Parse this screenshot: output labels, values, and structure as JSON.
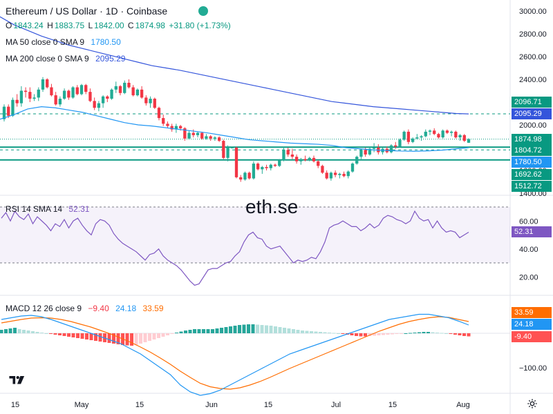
{
  "header": {
    "title": "Ethereum / US Dollar · 1D · Coinbase",
    "ohlc": {
      "o_label": "O",
      "o": "1843.24",
      "h_label": "H",
      "h": "1883.75",
      "l_label": "L",
      "l": "1842.00",
      "c_label": "C",
      "c": "1874.98",
      "change": "+31.80 (+1.73%)"
    },
    "ma50_label": "MA 50 close 0 SMA 9",
    "ma50_value": "1780.50",
    "ma200_label": "MA 200 close 0 SMA 9",
    "ma200_value": "2095.29"
  },
  "watermark": "eth.se",
  "rsi_header": {
    "label": "RSI 14 SMA 14",
    "value": "52.31"
  },
  "macd_header": {
    "label": "MACD 12 26 close 9",
    "hist": "−9.40",
    "macd": "24.18",
    "signal": "33.59"
  },
  "price_axis_labels": {
    "l1": "2096.71",
    "l2": "2095.29",
    "l3": "1874.98",
    "l4": "1804.72",
    "l5": "1780.50",
    "l6": "1692.62",
    "l7": "1512.72"
  },
  "rsi_axis_labels": {
    "value": "52.31"
  },
  "macd_axis_labels": {
    "signal": "33.59",
    "macd": "24.18",
    "hist": "-9.40"
  },
  "colors": {
    "up": "#22ab94",
    "down": "#f23645",
    "ma50": "#2196f3",
    "ma200": "#3455db",
    "green_line": "#089981",
    "rsi": "#7e57c2",
    "macd": "#2196f3",
    "signal": "#ff6d00",
    "hist_up_strong": "#26a69a",
    "hist_up_weak": "#b2dfdb",
    "hist_down_strong": "#ff5252",
    "hist_down_weak": "#ffcdd2"
  },
  "chart_data": [
    {
      "type": "candlestick",
      "title": "Ethereum / US Dollar · 1D · Coinbase",
      "price_ticks": [
        1400,
        1600,
        1800,
        2000,
        2200,
        2400,
        2600,
        2800,
        3000
      ],
      "x_tick_labels": [
        "15",
        "May",
        "15",
        "Jun",
        "15",
        "Jul",
        "15",
        "Aug"
      ],
      "candles": [
        [
          2050,
          2180,
          2030,
          2160
        ],
        [
          2160,
          2180,
          2060,
          2080
        ],
        [
          2080,
          2240,
          2070,
          2220
        ],
        [
          2220,
          2270,
          2160,
          2190
        ],
        [
          2190,
          2340,
          2160,
          2300
        ],
        [
          2300,
          2330,
          2240,
          2290
        ],
        [
          2290,
          2330,
          2200,
          2230
        ],
        [
          2230,
          2270,
          2210,
          2240
        ],
        [
          2240,
          2330,
          2210,
          2310
        ],
        [
          2310,
          2420,
          2290,
          2400
        ],
        [
          2400,
          2410,
          2320,
          2330
        ],
        [
          2330,
          2360,
          2250,
          2260
        ],
        [
          2260,
          2290,
          2170,
          2180
        ],
        [
          2180,
          2250,
          2160,
          2230
        ],
        [
          2230,
          2320,
          2220,
          2300
        ],
        [
          2300,
          2310,
          2220,
          2240
        ],
        [
          2240,
          2340,
          2230,
          2330
        ],
        [
          2330,
          2350,
          2260,
          2270
        ],
        [
          2270,
          2360,
          2260,
          2350
        ],
        [
          2350,
          2360,
          2270,
          2290
        ],
        [
          2290,
          2320,
          2200,
          2210
        ],
        [
          2210,
          2240,
          2130,
          2150
        ],
        [
          2150,
          2210,
          2120,
          2190
        ],
        [
          2190,
          2260,
          2150,
          2250
        ],
        [
          2250,
          2260,
          2200,
          2230
        ],
        [
          2230,
          2320,
          2220,
          2310
        ],
        [
          2310,
          2380,
          2280,
          2340
        ],
        [
          2340,
          2350,
          2260,
          2280
        ],
        [
          2280,
          2390,
          2270,
          2370
        ],
        [
          2370,
          2400,
          2320,
          2330
        ],
        [
          2330,
          2350,
          2250,
          2260
        ],
        [
          2260,
          2320,
          2250,
          2310
        ],
        [
          2310,
          2340,
          2230,
          2240
        ],
        [
          2240,
          2260,
          2170,
          2190
        ],
        [
          2190,
          2250,
          2150,
          2230
        ],
        [
          2230,
          2240,
          2140,
          2150
        ],
        [
          2150,
          2160,
          2040,
          2060
        ],
        [
          2060,
          2090,
          1990,
          2010
        ],
        [
          2010,
          2030,
          1970,
          1990
        ],
        [
          1990,
          2010,
          1940,
          1960
        ],
        [
          1960,
          2010,
          1930,
          1990
        ],
        [
          1990,
          2000,
          1950,
          1970
        ],
        [
          1970,
          1980,
          1860,
          1880
        ],
        [
          1880,
          1950,
          1870,
          1930
        ],
        [
          1930,
          1960,
          1890,
          1910
        ],
        [
          1910,
          1940,
          1890,
          1930
        ],
        [
          1930,
          1940,
          1870,
          1880
        ],
        [
          1880,
          1920,
          1870,
          1900
        ],
        [
          1900,
          1910,
          1860,
          1880
        ],
        [
          1880,
          1900,
          1860,
          1890
        ],
        [
          1890,
          1900,
          1850,
          1860
        ],
        [
          1860,
          1870,
          1700,
          1710
        ],
        [
          1710,
          1820,
          1680,
          1800
        ],
        [
          1800,
          1810,
          1800,
          1800
        ],
        [
          1800,
          1810,
          1530,
          1540
        ],
        [
          1540,
          1560,
          1500,
          1520
        ],
        [
          1520,
          1590,
          1510,
          1580
        ],
        [
          1580,
          1590,
          1520,
          1530
        ],
        [
          1530,
          1680,
          1520,
          1660
        ],
        [
          1660,
          1670,
          1600,
          1610
        ],
        [
          1610,
          1640,
          1570,
          1630
        ],
        [
          1630,
          1650,
          1600,
          1620
        ],
        [
          1620,
          1660,
          1600,
          1650
        ],
        [
          1650,
          1660,
          1630,
          1640
        ],
        [
          1640,
          1700,
          1630,
          1690
        ],
        [
          1690,
          1810,
          1680,
          1780
        ],
        [
          1780,
          1800,
          1720,
          1740
        ],
        [
          1740,
          1790,
          1700,
          1720
        ],
        [
          1720,
          1740,
          1660,
          1680
        ],
        [
          1680,
          1710,
          1650,
          1700
        ],
        [
          1700,
          1730,
          1680,
          1690
        ],
        [
          1690,
          1720,
          1680,
          1710
        ],
        [
          1710,
          1730,
          1670,
          1680
        ],
        [
          1680,
          1690,
          1620,
          1640
        ],
        [
          1640,
          1650,
          1570,
          1580
        ],
        [
          1580,
          1600,
          1520,
          1530
        ],
        [
          1530,
          1590,
          1510,
          1580
        ],
        [
          1580,
          1600,
          1540,
          1560
        ],
        [
          1560,
          1580,
          1530,
          1570
        ],
        [
          1570,
          1590,
          1540,
          1550
        ],
        [
          1550,
          1600,
          1530,
          1590
        ],
        [
          1590,
          1670,
          1580,
          1660
        ],
        [
          1660,
          1730,
          1650,
          1720
        ],
        [
          1720,
          1790,
          1700,
          1780
        ],
        [
          1780,
          1800,
          1720,
          1740
        ],
        [
          1740,
          1800,
          1730,
          1790
        ],
        [
          1790,
          1840,
          1760,
          1800
        ],
        [
          1800,
          1830,
          1740,
          1760
        ],
        [
          1760,
          1800,
          1740,
          1790
        ],
        [
          1790,
          1810,
          1750,
          1760
        ],
        [
          1760,
          1830,
          1750,
          1820
        ],
        [
          1820,
          1850,
          1790,
          1810
        ],
        [
          1810,
          1880,
          1800,
          1870
        ],
        [
          1870,
          1950,
          1860,
          1940
        ],
        [
          1940,
          1960,
          1830,
          1850
        ],
        [
          1850,
          1890,
          1840,
          1880
        ],
        [
          1880,
          1920,
          1870,
          1890
        ],
        [
          1890,
          1910,
          1860,
          1900
        ],
        [
          1900,
          1960,
          1890,
          1940
        ],
        [
          1940,
          1960,
          1910,
          1950
        ],
        [
          1950,
          1970,
          1910,
          1920
        ],
        [
          1920,
          1930,
          1880,
          1890
        ],
        [
          1890,
          1960,
          1880,
          1950
        ],
        [
          1950,
          1960,
          1920,
          1930
        ],
        [
          1930,
          1950,
          1900,
          1940
        ],
        [
          1940,
          1950,
          1880,
          1890
        ],
        [
          1890,
          1920,
          1860,
          1910
        ],
        [
          1910,
          1920,
          1850,
          1860
        ],
        [
          1843,
          1883,
          1842,
          1875
        ]
      ],
      "ma50": [
        [
          0,
          2050
        ],
        [
          20,
          2090
        ],
        [
          40,
          2140
        ],
        [
          60,
          2160
        ],
        [
          80,
          2150
        ],
        [
          100,
          2130
        ],
        [
          120,
          2110
        ],
        [
          140,
          2080
        ],
        [
          160,
          2050
        ],
        [
          180,
          2020
        ],
        [
          200,
          2000
        ],
        [
          220,
          1990
        ],
        [
          240,
          1975
        ],
        [
          260,
          1960
        ],
        [
          280,
          1945
        ],
        [
          300,
          1930
        ],
        [
          320,
          1910
        ],
        [
          340,
          1890
        ],
        [
          360,
          1870
        ],
        [
          380,
          1860
        ],
        [
          400,
          1850
        ],
        [
          420,
          1840
        ],
        [
          440,
          1835
        ],
        [
          460,
          1830
        ],
        [
          480,
          1820
        ],
        [
          500,
          1800
        ],
        [
          520,
          1790
        ],
        [
          540,
          1780
        ],
        [
          560,
          1775
        ],
        [
          580,
          1770
        ],
        [
          600,
          1768
        ],
        [
          620,
          1772
        ],
        [
          640,
          1778
        ],
        [
          660,
          1790
        ],
        [
          678,
          1800
        ]
      ],
      "ma200": [
        [
          0,
          2950
        ],
        [
          20,
          2880
        ],
        [
          40,
          2830
        ],
        [
          60,
          2780
        ],
        [
          80,
          2740
        ],
        [
          100,
          2700
        ],
        [
          120,
          2670
        ],
        [
          140,
          2640
        ],
        [
          160,
          2610
        ],
        [
          180,
          2580
        ],
        [
          200,
          2550
        ],
        [
          220,
          2520
        ],
        [
          240,
          2500
        ],
        [
          260,
          2480
        ],
        [
          280,
          2455
        ],
        [
          300,
          2430
        ],
        [
          320,
          2405
        ],
        [
          340,
          2380
        ],
        [
          360,
          2355
        ],
        [
          380,
          2330
        ],
        [
          400,
          2305
        ],
        [
          420,
          2280
        ],
        [
          440,
          2255
        ],
        [
          460,
          2230
        ],
        [
          480,
          2205
        ],
        [
          500,
          2190
        ],
        [
          520,
          2175
        ],
        [
          540,
          2160
        ],
        [
          560,
          2150
        ],
        [
          580,
          2140
        ],
        [
          600,
          2130
        ],
        [
          620,
          2120
        ],
        [
          640,
          2110
        ],
        [
          660,
          2100
        ],
        [
          678,
          2096
        ]
      ]
    },
    {
      "type": "line",
      "title": "RSI 14 SMA 14",
      "y_ticks": [
        20,
        40,
        60
      ],
      "band": [
        30,
        70
      ],
      "values": [
        62,
        66,
        60,
        67,
        63,
        61,
        65,
        58,
        63,
        60,
        57,
        53,
        58,
        56,
        61,
        55,
        60,
        62,
        57,
        53,
        50,
        58,
        61,
        60,
        57,
        51,
        47,
        44,
        42,
        40,
        38,
        35,
        32,
        36,
        37,
        40,
        35,
        32,
        30,
        28,
        25,
        21,
        17,
        14,
        15,
        20,
        25,
        26,
        26,
        28,
        30,
        31,
        35,
        38,
        45,
        50,
        52,
        48,
        47,
        42,
        40,
        41,
        42,
        38,
        34,
        30,
        32,
        31,
        32,
        34,
        33,
        38,
        45,
        55,
        57,
        58,
        60,
        58,
        56,
        56,
        53,
        55,
        58,
        55,
        57,
        62,
        64,
        63,
        61,
        60,
        58,
        60,
        67,
        62,
        60,
        61,
        55,
        60,
        55,
        52,
        53,
        52,
        48,
        50,
        52
      ]
    },
    {
      "type": "bar_line",
      "title": "MACD 12 26 close 9",
      "y_ticks": [
        -100
      ],
      "histogram": [
        10,
        12,
        14,
        16,
        12,
        10,
        8,
        6,
        4,
        2,
        0,
        -2,
        -4,
        -6,
        -8,
        -10,
        -12,
        -14,
        -16,
        -18,
        -20,
        -22,
        -24,
        -26,
        -28,
        -30,
        -32,
        -34,
        -35,
        -36,
        -34,
        -30,
        -26,
        -22,
        -18,
        -14,
        -10,
        -6,
        -2,
        2,
        5,
        8,
        10,
        12,
        12,
        12,
        12,
        12,
        14,
        16,
        18,
        20,
        22,
        24,
        25,
        26,
        26,
        25,
        24,
        23,
        22,
        20,
        18,
        16,
        14,
        12,
        10,
        8,
        7,
        6,
        5,
        4,
        3,
        2,
        1,
        0,
        -2,
        -4,
        -6,
        -8,
        -9,
        -9,
        -8,
        -7,
        -6,
        -5,
        -4,
        -3,
        -2,
        -1,
        0,
        1,
        2,
        3,
        4,
        4,
        3,
        2,
        1,
        0,
        -2,
        -4,
        -6,
        -8,
        -9
      ],
      "macd": [
        40,
        45,
        50,
        52,
        48,
        40,
        30,
        20,
        10,
        0,
        -10,
        -20,
        -30,
        -45,
        -60,
        -80,
        -100,
        -120,
        -150,
        -170,
        -180,
        -175,
        -165,
        -150,
        -135,
        -120,
        -105,
        -90,
        -75,
        -60,
        -50,
        -40,
        -30,
        -20,
        -10,
        0,
        10,
        20,
        30,
        40,
        45,
        50,
        55,
        55,
        50,
        45,
        35,
        24
      ],
      "signal": [
        30,
        35,
        40,
        44,
        45,
        44,
        40,
        34,
        26,
        18,
        8,
        -2,
        -14,
        -26,
        -40,
        -55,
        -72,
        -90,
        -110,
        -128,
        -145,
        -155,
        -160,
        -162,
        -158,
        -150,
        -140,
        -128,
        -115,
        -102,
        -90,
        -78,
        -66,
        -54,
        -42,
        -30,
        -18,
        -6,
        6,
        16,
        26,
        34,
        40,
        45,
        48,
        46,
        40,
        34
      ]
    }
  ]
}
